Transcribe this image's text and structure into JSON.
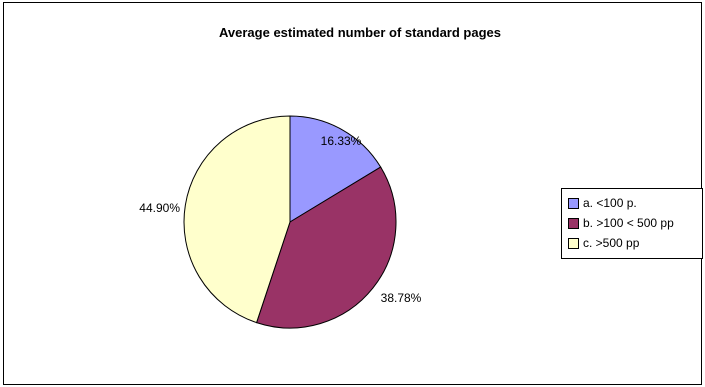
{
  "chart_data": {
    "type": "pie",
    "title": "Average estimated number of standard pages",
    "categories": [
      "a. <100 p.",
      "b. >100 < 500 pp",
      "c. >500 pp"
    ],
    "values": [
      16.33,
      38.78,
      44.9
    ],
    "labels": [
      "16.33%",
      "38.78%",
      "44.90%"
    ],
    "colors": [
      "#9999FF",
      "#993366",
      "#FFFFCC"
    ],
    "legend_position": "right"
  }
}
